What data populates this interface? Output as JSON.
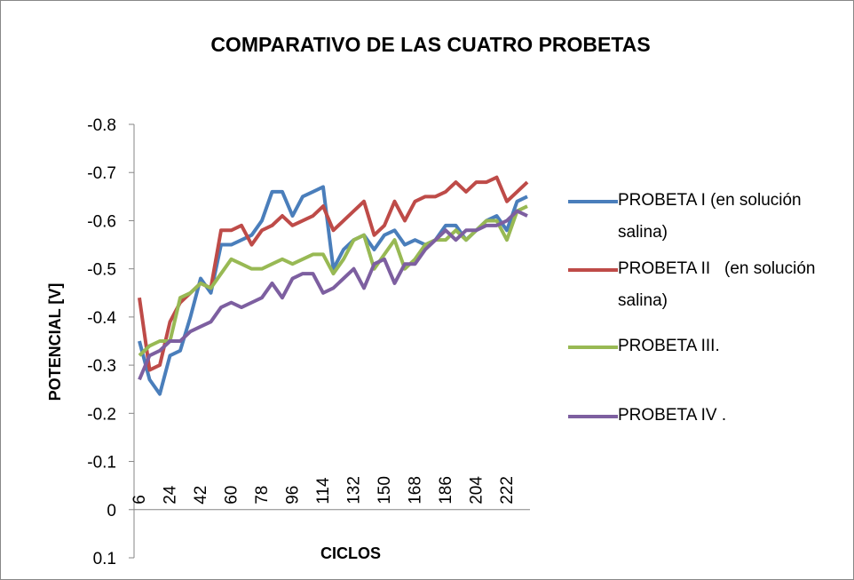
{
  "chart_data": {
    "type": "line",
    "title": "COMPARATIVO DE LAS CUATRO PROBETAS",
    "y_label": "POTENCIAL [V]",
    "x_label": "CICLOS",
    "categories": [
      6,
      null,
      null,
      24,
      null,
      null,
      42,
      null,
      null,
      60,
      null,
      null,
      78,
      null,
      null,
      96,
      null,
      null,
      114,
      null,
      null,
      132,
      null,
      null,
      150,
      null,
      null,
      168,
      null,
      null,
      186,
      null,
      null,
      204,
      null,
      null,
      222,
      null,
      null
    ],
    "ylim": [
      0.1,
      -0.8
    ],
    "yticks": [
      -0.8,
      -0.7,
      -0.6,
      -0.5,
      -0.4,
      -0.3,
      -0.2,
      -0.1,
      0,
      0.1
    ],
    "y_reversed": true,
    "legend": "right",
    "series": [
      {
        "name": "PROBETA I (en solución salina)",
        "color": "#4a7ebb",
        "values": [
          -0.35,
          -0.27,
          -0.24,
          -0.32,
          -0.33,
          -0.4,
          -0.48,
          -0.45,
          -0.55,
          -0.55,
          -0.56,
          -0.57,
          -0.6,
          -0.66,
          -0.66,
          -0.61,
          -0.65,
          -0.66,
          -0.67,
          -0.5,
          -0.54,
          -0.56,
          -0.57,
          -0.54,
          -0.57,
          -0.58,
          -0.55,
          -0.56,
          -0.55,
          -0.56,
          -0.59,
          -0.59,
          -0.56,
          -0.58,
          -0.6,
          -0.61,
          -0.58,
          -0.64,
          -0.65
        ]
      },
      {
        "name": "PROBETA II   (en solución salina)",
        "color": "#be4b48",
        "values": [
          -0.44,
          -0.29,
          -0.3,
          -0.39,
          -0.43,
          -0.45,
          -0.47,
          -0.46,
          -0.58,
          -0.58,
          -0.59,
          -0.55,
          -0.58,
          -0.59,
          -0.61,
          -0.59,
          -0.6,
          -0.61,
          -0.63,
          -0.58,
          -0.6,
          -0.62,
          -0.64,
          -0.57,
          -0.59,
          -0.64,
          -0.6,
          -0.64,
          -0.65,
          -0.65,
          -0.66,
          -0.68,
          -0.66,
          -0.68,
          -0.68,
          -0.69,
          -0.64,
          -0.66,
          -0.68
        ]
      },
      {
        "name": "PROBETA III.",
        "color": "#98b954",
        "values": [
          -0.32,
          -0.34,
          -0.35,
          -0.35,
          -0.44,
          -0.45,
          -0.47,
          -0.46,
          -0.49,
          -0.52,
          -0.51,
          -0.5,
          -0.5,
          -0.51,
          -0.52,
          -0.51,
          -0.52,
          -0.53,
          -0.53,
          -0.49,
          -0.52,
          -0.56,
          -0.57,
          -0.5,
          -0.53,
          -0.56,
          -0.5,
          -0.52,
          -0.55,
          -0.56,
          -0.56,
          -0.58,
          -0.56,
          -0.58,
          -0.6,
          -0.6,
          -0.56,
          -0.62,
          -0.63
        ]
      },
      {
        "name": "PROBETA IV .",
        "color": "#7d5fa0",
        "values": [
          -0.27,
          -0.32,
          -0.33,
          -0.35,
          -0.35,
          -0.37,
          -0.38,
          -0.39,
          -0.42,
          -0.43,
          -0.42,
          -0.43,
          -0.44,
          -0.47,
          -0.44,
          -0.48,
          -0.49,
          -0.49,
          -0.45,
          -0.46,
          -0.48,
          -0.5,
          -0.46,
          -0.51,
          -0.52,
          -0.47,
          -0.51,
          -0.51,
          -0.54,
          -0.56,
          -0.58,
          -0.56,
          -0.58,
          -0.58,
          -0.59,
          -0.59,
          -0.6,
          -0.62,
          -0.61
        ]
      }
    ]
  }
}
